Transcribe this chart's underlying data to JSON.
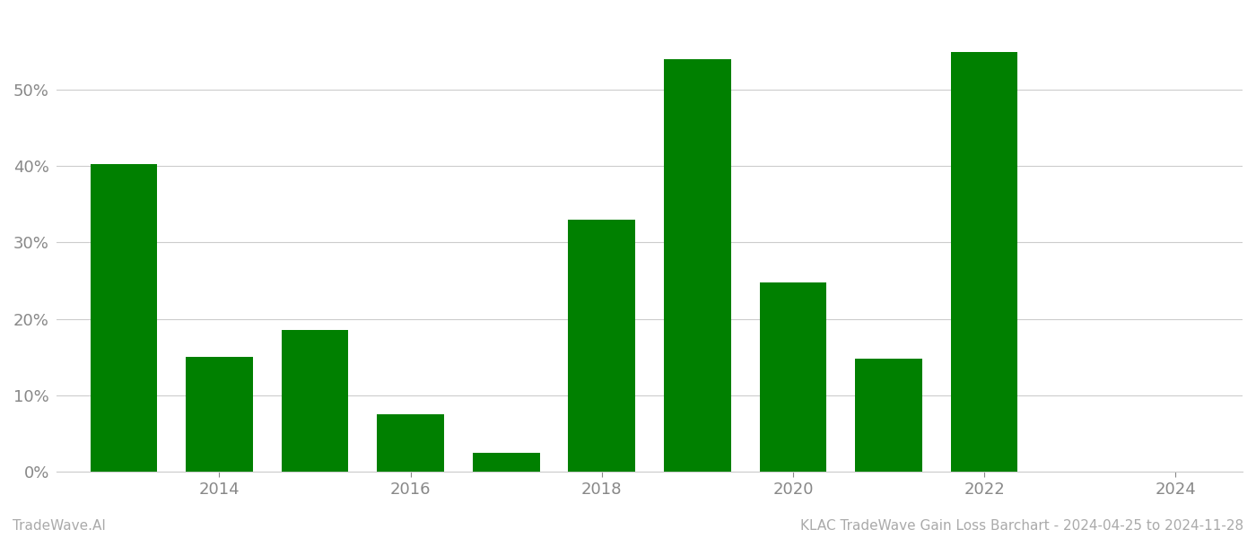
{
  "years": [
    2013,
    2014,
    2015,
    2016,
    2017,
    2018,
    2019,
    2020,
    2021,
    2022,
    2023
  ],
  "values": [
    0.403,
    0.15,
    0.185,
    0.075,
    0.025,
    0.33,
    0.54,
    0.248,
    0.148,
    0.55,
    0.0
  ],
  "bar_color": "#008000",
  "background_color": "#ffffff",
  "grid_color": "#cccccc",
  "tick_color": "#888888",
  "footer_left": "TradeWave.AI",
  "footer_right": "KLAC TradeWave Gain Loss Barchart - 2024-04-25 to 2024-11-28",
  "footer_color": "#aaaaaa",
  "ylim": [
    0,
    0.6
  ],
  "yticks": [
    0.0,
    0.1,
    0.2,
    0.3,
    0.4,
    0.5
  ],
  "xticks": [
    2014,
    2016,
    2018,
    2020,
    2022,
    2024
  ],
  "xlim": [
    2012.3,
    2024.7
  ],
  "bar_width": 0.7,
  "figsize": [
    14.0,
    6.0
  ],
  "dpi": 100,
  "tick_fontsize": 13,
  "footer_fontsize": 11
}
